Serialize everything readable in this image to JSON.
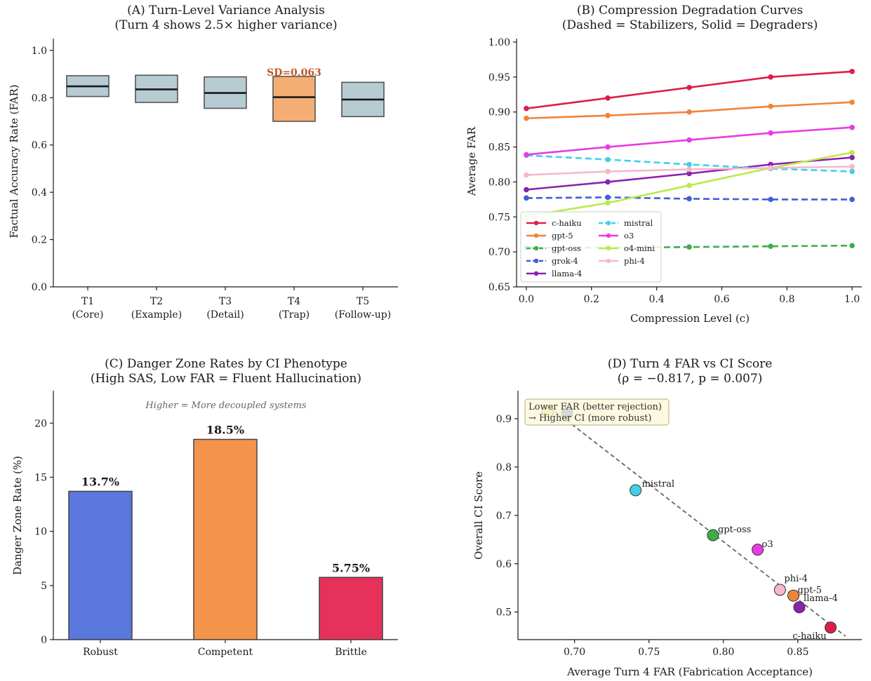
{
  "chart_data": [
    {
      "panel": "A",
      "type": "box",
      "title": "(A) Turn-Level Variance Analysis",
      "subtitle": "(Turn 4 shows 2.5× higher variance)",
      "ylabel": "Factual Accuracy Rate (FAR)",
      "xlabel": "",
      "ylim": [
        0,
        1.05
      ],
      "yticks": [
        "0.0",
        "0.2",
        "0.4",
        "0.6",
        "0.8",
        "1.0"
      ],
      "categories": [
        "T1",
        "T2",
        "T3",
        "T4",
        "T5"
      ],
      "sublabels": [
        "(Core)",
        "(Example)",
        "(Detail)",
        "(Trap)",
        "(Follow-up)"
      ],
      "boxes": [
        {
          "q1": 0.805,
          "median": 0.848,
          "q3": 0.893,
          "color": "#b7cbd3"
        },
        {
          "q1": 0.78,
          "median": 0.835,
          "q3": 0.895,
          "color": "#b7cbd3"
        },
        {
          "q1": 0.755,
          "median": 0.82,
          "q3": 0.888,
          "color": "#b7cbd3"
        },
        {
          "q1": 0.7,
          "median": 0.802,
          "q3": 0.89,
          "color": "#f4ae73"
        },
        {
          "q1": 0.72,
          "median": 0.792,
          "q3": 0.865,
          "color": "#b7cbd3"
        }
      ],
      "annotation": {
        "text": "SD=0.063",
        "color": "#c0562a"
      }
    },
    {
      "panel": "B",
      "type": "line",
      "title": "(B) Compression Degradation Curves",
      "subtitle": "(Dashed = Stabilizers, Solid = Degraders)",
      "xlabel": "Compression Level (c)",
      "ylabel": "Average FAR",
      "xlim": [
        -0.03,
        1.03
      ],
      "ylim": [
        0.65,
        1.005
      ],
      "xticks": [
        "0.0",
        "0.2",
        "0.4",
        "0.6",
        "0.8",
        "1.0"
      ],
      "yticks": [
        "0.65",
        "0.70",
        "0.75",
        "0.80",
        "0.85",
        "0.90",
        "0.95",
        "1.00"
      ],
      "x": [
        0,
        0.25,
        0.5,
        0.75,
        1.0
      ],
      "legend_position": "lower-left",
      "series": [
        {
          "name": "c-haiku",
          "color": "#dc1e4a",
          "dashed": false,
          "values": [
            0.905,
            0.92,
            0.935,
            0.95,
            0.958
          ]
        },
        {
          "name": "gpt-5",
          "color": "#f0843c",
          "dashed": false,
          "values": [
            0.891,
            0.895,
            0.9,
            0.908,
            0.914
          ]
        },
        {
          "name": "gpt-oss",
          "color": "#3cae4a",
          "dashed": true,
          "values": [
            0.706,
            0.706,
            0.707,
            0.708,
            0.709
          ]
        },
        {
          "name": "grok-4",
          "color": "#3f5fd6",
          "dashed": true,
          "values": [
            0.777,
            0.778,
            0.776,
            0.775,
            0.775
          ]
        },
        {
          "name": "llama-4",
          "color": "#8a22b0",
          "dashed": false,
          "values": [
            0.789,
            0.8,
            0.812,
            0.825,
            0.835
          ]
        },
        {
          "name": "mistral",
          "color": "#42cfe8",
          "dashed": true,
          "values": [
            0.838,
            0.832,
            0.825,
            0.819,
            0.815
          ]
        },
        {
          "name": "o3",
          "color": "#e93ae3",
          "dashed": false,
          "values": [
            0.839,
            0.85,
            0.86,
            0.87,
            0.878
          ]
        },
        {
          "name": "o4-mini",
          "color": "#bce84e",
          "dashed": false,
          "values": [
            0.751,
            0.77,
            0.795,
            0.82,
            0.842
          ]
        },
        {
          "name": "phi-4",
          "color": "#f6b7cc",
          "dashed": false,
          "values": [
            0.81,
            0.815,
            0.818,
            0.82,
            0.822
          ]
        }
      ]
    },
    {
      "panel": "C",
      "type": "bar",
      "title": "(C) Danger Zone Rates by CI Phenotype",
      "subtitle": "(High SAS, Low FAR = Fluent Hallucination)",
      "note": "Higher = More decoupled systems",
      "ylabel": "Danger Zone Rate (%)",
      "xlabel": "",
      "ylim": [
        0,
        23
      ],
      "yticks": [
        "0",
        "5",
        "10",
        "15",
        "20"
      ],
      "categories": [
        "Robust",
        "Competent",
        "Brittle"
      ],
      "values": [
        13.7,
        18.5,
        5.75
      ],
      "labels": [
        "13.7%",
        "18.5%",
        "5.75%"
      ],
      "colors": [
        "#5a77dd",
        "#f4944a",
        "#e6325a"
      ]
    },
    {
      "panel": "D",
      "type": "scatter",
      "title": "(D) Turn 4 FAR vs CI Score",
      "subtitle": "(ρ = −0.817, p = 0.007)",
      "xlabel": "Average Turn 4 FAR (Fabrication Acceptance)",
      "ylabel": "Overall CI Score",
      "xlim": [
        0.662,
        0.893
      ],
      "ylim": [
        0.443,
        0.958
      ],
      "xticks": [
        "0.70",
        "0.75",
        "0.80",
        "0.85"
      ],
      "yticks": [
        "0.5",
        "0.6",
        "0.7",
        "0.8",
        "0.9"
      ],
      "annotation_box": [
        "Lower FAR (better rejection)",
        "→ Higher CI (more robust)"
      ],
      "trend": {
        "x": [
          0.687,
          0.882
        ],
        "y": [
          0.915,
          0.45
        ]
      },
      "points": [
        {
          "name": "",
          "x": 0.682,
          "y": 0.915,
          "color": "#bce84e"
        },
        {
          "name": "",
          "x": 0.695,
          "y": 0.912,
          "color": "#3f5fd6"
        },
        {
          "name": "mistral",
          "x": 0.741,
          "y": 0.752,
          "color": "#42cfe8"
        },
        {
          "name": "gpt-oss",
          "x": 0.793,
          "y": 0.659,
          "color": "#3cae4a"
        },
        {
          "name": "o3",
          "x": 0.823,
          "y": 0.629,
          "color": "#e93ae3"
        },
        {
          "name": "phi-4",
          "x": 0.838,
          "y": 0.546,
          "color": "#f6b7cc"
        },
        {
          "name": "gpt-5",
          "x": 0.847,
          "y": 0.534,
          "color": "#f0843c"
        },
        {
          "name": "llama-4",
          "x": 0.851,
          "y": 0.51,
          "color": "#8a22b0"
        },
        {
          "name": "c-haiku",
          "x": 0.872,
          "y": 0.468,
          "color": "#dc1e4a"
        }
      ]
    }
  ]
}
